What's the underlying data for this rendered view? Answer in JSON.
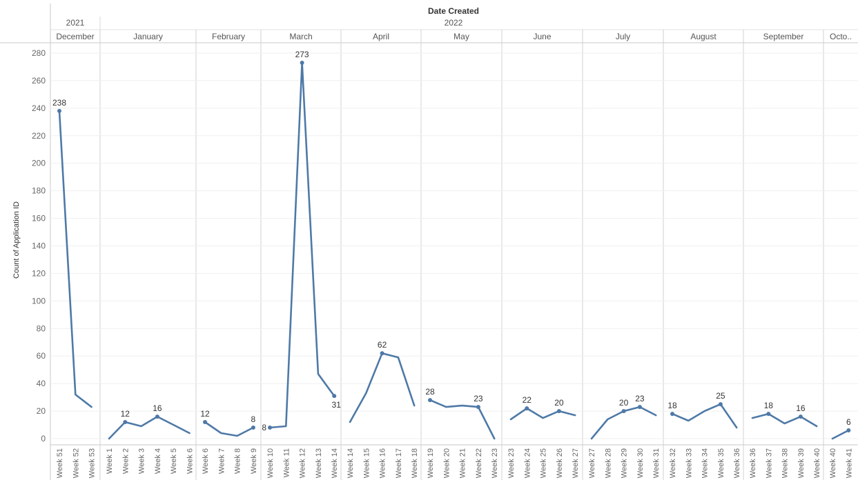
{
  "chart_data": {
    "type": "line",
    "title": "Date Created",
    "ylabel": "Count of Application ID",
    "ylim": [
      0,
      280
    ],
    "yticks": [
      0,
      20,
      40,
      60,
      80,
      100,
      120,
      140,
      160,
      180,
      200,
      220,
      240,
      260,
      280
    ],
    "grid": true,
    "line_color": "#4e79a7",
    "years": [
      {
        "label": "2021",
        "months": [
          "December"
        ]
      },
      {
        "label": "2022",
        "months": [
          "January",
          "February",
          "March",
          "April",
          "May",
          "June",
          "July",
          "August",
          "September",
          "Octo.."
        ]
      }
    ],
    "months": [
      {
        "label": "December",
        "points": [
          {
            "week": "Week 51",
            "value": 238,
            "label": "238"
          },
          {
            "week": "Week 52",
            "value": 32,
            "label": ""
          },
          {
            "week": "Week 53",
            "value": 23,
            "label": ""
          }
        ]
      },
      {
        "label": "January",
        "points": [
          {
            "week": "Week 1",
            "value": 0,
            "label": ""
          },
          {
            "week": "Week 2",
            "value": 12,
            "label": "12"
          },
          {
            "week": "Week 3",
            "value": 9,
            "label": ""
          },
          {
            "week": "Week 4",
            "value": 16,
            "label": "16"
          },
          {
            "week": "Week 5",
            "value": 10,
            "label": ""
          },
          {
            "week": "Week 6",
            "value": 4,
            "label": ""
          }
        ]
      },
      {
        "label": "February",
        "points": [
          {
            "week": "Week 6",
            "value": 12,
            "label": "12"
          },
          {
            "week": "Week 7",
            "value": 4,
            "label": ""
          },
          {
            "week": "Week 8",
            "value": 2,
            "label": ""
          },
          {
            "week": "Week 9",
            "value": 8,
            "label": "8"
          }
        ]
      },
      {
        "label": "March",
        "points": [
          {
            "week": "Week 10",
            "value": 8,
            "label": "8"
          },
          {
            "week": "Week 11",
            "value": 9,
            "label": ""
          },
          {
            "week": "Week 12",
            "value": 273,
            "label": "273"
          },
          {
            "week": "Week 13",
            "value": 47,
            "label": ""
          },
          {
            "week": "Week 14",
            "value": 31,
            "label": "31"
          }
        ]
      },
      {
        "label": "April",
        "points": [
          {
            "week": "Week 14",
            "value": 12,
            "label": ""
          },
          {
            "week": "Week 15",
            "value": 33,
            "label": ""
          },
          {
            "week": "Week 16",
            "value": 62,
            "label": "62"
          },
          {
            "week": "Week 17",
            "value": 59,
            "label": ""
          },
          {
            "week": "Week 18",
            "value": 24,
            "label": ""
          }
        ]
      },
      {
        "label": "May",
        "points": [
          {
            "week": "Week 19",
            "value": 28,
            "label": "28"
          },
          {
            "week": "Week 20",
            "value": 23,
            "label": ""
          },
          {
            "week": "Week 21",
            "value": 24,
            "label": ""
          },
          {
            "week": "Week 22",
            "value": 23,
            "label": "23"
          },
          {
            "week": "Week 23",
            "value": 0,
            "label": ""
          }
        ]
      },
      {
        "label": "June",
        "points": [
          {
            "week": "Week 23",
            "value": 14,
            "label": ""
          },
          {
            "week": "Week 24",
            "value": 22,
            "label": "22"
          },
          {
            "week": "Week 25",
            "value": 15,
            "label": ""
          },
          {
            "week": "Week 26",
            "value": 20,
            "label": "20"
          },
          {
            "week": "Week 27",
            "value": 17,
            "label": ""
          }
        ]
      },
      {
        "label": "July",
        "points": [
          {
            "week": "Week 27",
            "value": 0,
            "label": ""
          },
          {
            "week": "Week 28",
            "value": 14,
            "label": ""
          },
          {
            "week": "Week 29",
            "value": 20,
            "label": "20"
          },
          {
            "week": "Week 30",
            "value": 23,
            "label": "23"
          },
          {
            "week": "Week 31",
            "value": 17,
            "label": ""
          }
        ]
      },
      {
        "label": "August",
        "points": [
          {
            "week": "Week 32",
            "value": 18,
            "label": "18"
          },
          {
            "week": "Week 33",
            "value": 13,
            "label": ""
          },
          {
            "week": "Week 34",
            "value": 20,
            "label": ""
          },
          {
            "week": "Week 35",
            "value": 25,
            "label": "25"
          },
          {
            "week": "Week 36",
            "value": 8,
            "label": ""
          }
        ]
      },
      {
        "label": "September",
        "points": [
          {
            "week": "Week 36",
            "value": 15,
            "label": ""
          },
          {
            "week": "Week 37",
            "value": 18,
            "label": "18"
          },
          {
            "week": "Week 38",
            "value": 11,
            "label": ""
          },
          {
            "week": "Week 39",
            "value": 16,
            "label": "16"
          },
          {
            "week": "Week 40",
            "value": 9,
            "label": ""
          }
        ]
      },
      {
        "label": "Octo..",
        "points": [
          {
            "week": "Week 40",
            "value": 0,
            "label": ""
          },
          {
            "week": "Week 41",
            "value": 6,
            "label": "6"
          }
        ]
      }
    ]
  }
}
